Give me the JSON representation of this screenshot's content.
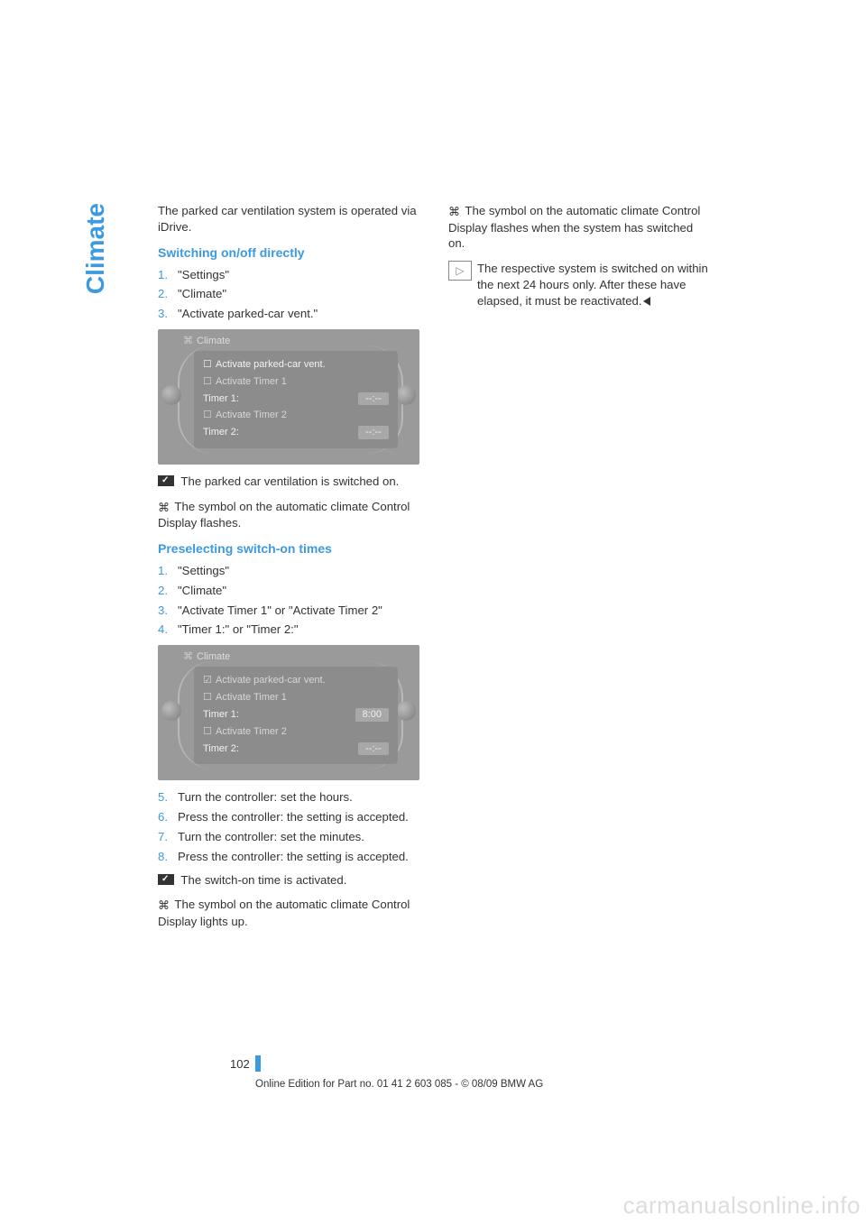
{
  "colors": {
    "accent": "#3b9ae1",
    "text": "#333333",
    "screenshot_bg": "#9a9a9a",
    "screenshot_panel": "#8c8c8c",
    "watermark": "#dddddd"
  },
  "side_tab": "Climate",
  "left": {
    "intro": "The parked car ventilation system is operated via iDrive.",
    "h1": "Switching on/off directly",
    "list1": {
      "i1": "\"Settings\"",
      "i2": "\"Climate\"",
      "i3": "\"Activate parked-car vent.\""
    },
    "shot1": {
      "header": "Climate",
      "r1": "Activate parked-car vent.",
      "r2": "Activate Timer 1",
      "r3l": "Timer 1:",
      "r3v": "--:--",
      "r4": "Activate Timer 2",
      "r5l": "Timer 2:",
      "r5v": "--:--"
    },
    "after1a": " The parked car ventilation is switched on.",
    "after1b": " The symbol on the automatic climate Control Display flashes.",
    "h2": "Preselecting switch-on times",
    "list2": {
      "i1": "\"Settings\"",
      "i2": "\"Climate\"",
      "i3": "\"Activate Timer 1\" or \"Activate Timer 2\"",
      "i4": "\"Timer 1:\" or \"Timer 2:\""
    },
    "shot2": {
      "header": "Climate",
      "r1": "Activate parked-car vent.",
      "r2": "Activate Timer 1",
      "r3l": "Timer 1:",
      "r3v": "8:00",
      "r4": "Activate Timer 2",
      "r5l": "Timer 2:",
      "r5v": "--:--"
    },
    "list3": {
      "i5": "Turn the controller: set the hours.",
      "i6": "Press the controller: the setting is accepted.",
      "i7": "Turn the controller: set the minutes.",
      "i8": "Press the controller: the setting is accepted."
    },
    "after2a": " The switch-on time is activated.",
    "after2b": " The symbol on the automatic climate Control Display lights up."
  },
  "right": {
    "p1": " The symbol on the automatic climate Control Display flashes when the system has switched on.",
    "note": "The respective system is switched on within the next 24 hours only. After these have elapsed, it must be reactivated."
  },
  "footer": {
    "page": "102",
    "line": "Online Edition for Part no. 01 41 2 603 085 - © 08/09 BMW AG"
  },
  "watermark": "carmanualsonline.info"
}
